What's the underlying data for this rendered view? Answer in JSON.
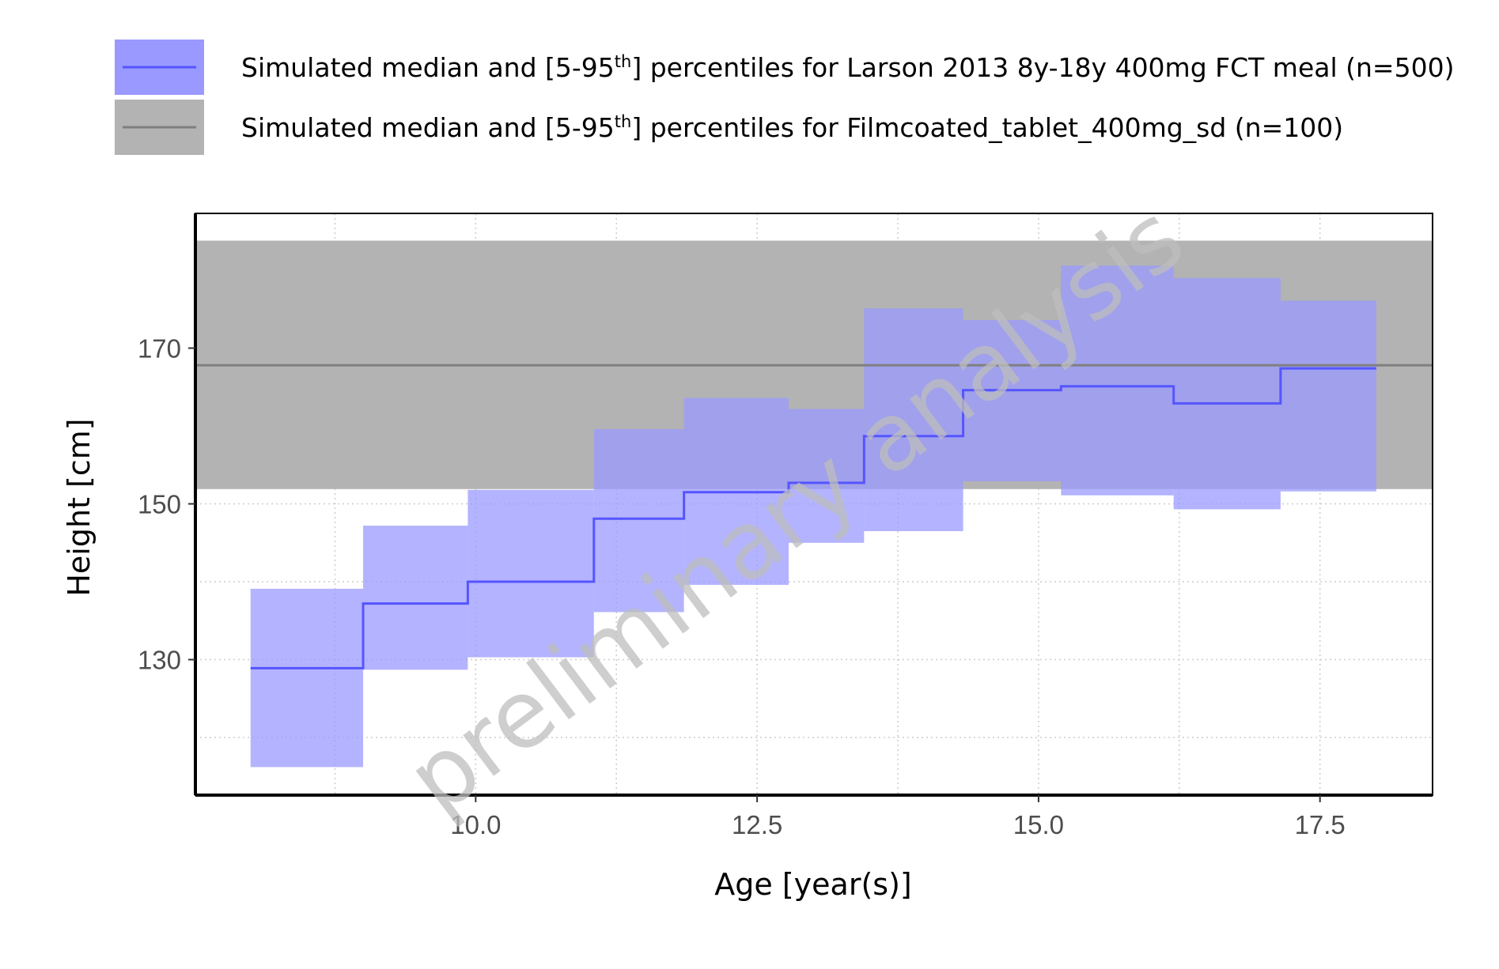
{
  "chart_data": {
    "type": "area",
    "xlabel": "Age [year(s)]",
    "ylabel": "Height [cm]",
    "xlim": [
      7.51,
      18.5
    ],
    "ylim": [
      112.6,
      187.3
    ],
    "xticks": [
      10.0,
      12.5,
      15.0,
      17.5
    ],
    "xtick_labels": [
      "10.0",
      "12.5",
      "15.0",
      "17.5"
    ],
    "yticks": [
      130,
      150,
      170
    ],
    "ytick_labels": [
      "130",
      "150",
      "170"
    ],
    "grid": "dotted major and minor",
    "legend_position": "top",
    "watermark": "preliminary analysis",
    "series": [
      {
        "name": "Simulated median and [5-95th] percentiles for Larson 2013 8y-18y 400mg FCT meal (n=500)",
        "legend_prefix": "Simulated median and [5-95",
        "legend_sup": "th",
        "legend_suffix": "] percentiles for Larson 2013 8y-18y 400mg FCT meal (n=500)",
        "color": "#5555ff",
        "band_color": "#9999ff",
        "steps": [
          {
            "x0": 8.0,
            "x1": 9.0,
            "median": 128.9,
            "p5": 116.2,
            "p95": 139.1
          },
          {
            "x0": 9.0,
            "x1": 9.93,
            "median": 137.2,
            "p5": 128.7,
            "p95": 147.2
          },
          {
            "x0": 9.93,
            "x1": 11.05,
            "median": 140.0,
            "p5": 130.3,
            "p95": 151.8
          },
          {
            "x0": 11.05,
            "x1": 11.85,
            "median": 148.1,
            "p5": 136.1,
            "p95": 159.6
          },
          {
            "x0": 11.85,
            "x1": 12.78,
            "median": 151.5,
            "p5": 139.6,
            "p95": 163.6
          },
          {
            "x0": 12.78,
            "x1": 13.45,
            "median": 152.7,
            "p5": 145.0,
            "p95": 162.2
          },
          {
            "x0": 13.45,
            "x1": 14.33,
            "median": 158.7,
            "p5": 146.5,
            "p95": 175.1
          },
          {
            "x0": 14.33,
            "x1": 15.2,
            "median": 164.6,
            "p5": 152.9,
            "p95": 173.6
          },
          {
            "x0": 15.2,
            "x1": 16.2,
            "median": 165.1,
            "p5": 151.1,
            "p95": 180.6
          },
          {
            "x0": 16.2,
            "x1": 17.15,
            "median": 162.9,
            "p5": 149.3,
            "p95": 179.0
          },
          {
            "x0": 17.15,
            "x1": 18.0,
            "median": 167.4,
            "p5": 151.6,
            "p95": 176.1
          }
        ]
      },
      {
        "name": "Simulated median and [5-95th] percentiles for Filmcoated_tablet_400mg_sd (n=100)",
        "legend_prefix": "Simulated median and [5-95",
        "legend_sup": "th",
        "legend_suffix": "] percentiles for Filmcoated_tablet_400mg_sd (n=100)",
        "color": "#7f7f7f",
        "band_color": "#b3b3b3",
        "median": 167.8,
        "p5": 151.9,
        "p95": 183.8
      }
    ]
  }
}
